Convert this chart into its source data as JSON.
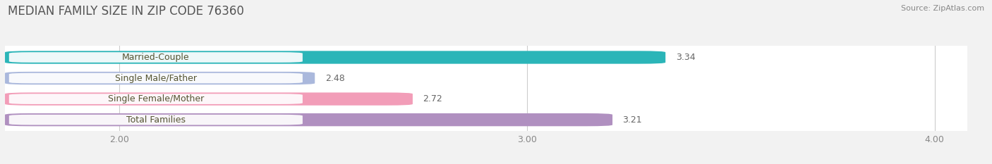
{
  "title": "MEDIAN FAMILY SIZE IN ZIP CODE 76360",
  "source": "Source: ZipAtlas.com",
  "categories": [
    "Married-Couple",
    "Single Male/Father",
    "Single Female/Mother",
    "Total Families"
  ],
  "values": [
    3.34,
    2.48,
    2.72,
    3.21
  ],
  "bar_colors": [
    "#2bb5b8",
    "#aab8dc",
    "#f29db8",
    "#b090c0"
  ],
  "xlim_min": 1.72,
  "xlim_max": 4.08,
  "x_axis_min": 2.0,
  "x_axis_max": 4.0,
  "xticks": [
    2.0,
    3.0,
    4.0
  ],
  "xtick_labels": [
    "2.00",
    "3.00",
    "4.00"
  ],
  "bar_height": 0.62,
  "background_color": "#f2f2f2",
  "plot_bg_color": "#ffffff",
  "title_color": "#555555",
  "title_fontsize": 12,
  "label_fontsize": 9,
  "value_fontsize": 9,
  "tick_fontsize": 9,
  "source_fontsize": 8,
  "source_color": "#888888",
  "label_text_color": "#555533",
  "value_text_color": "#666666"
}
